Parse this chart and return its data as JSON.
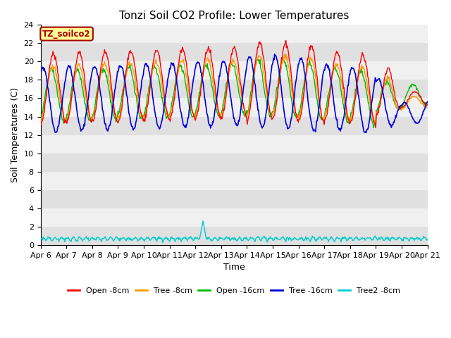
{
  "title": "Tonzi Soil CO2 Profile: Lower Temperatures",
  "xlabel": "Time",
  "ylabel": "Soil Temperatures (C)",
  "ylim": [
    0,
    24
  ],
  "yticks": [
    0,
    2,
    4,
    6,
    8,
    10,
    12,
    14,
    16,
    18,
    20,
    22,
    24
  ],
  "annotation_text": "TZ_soilco2",
  "annotation_color": "#aa0000",
  "annotation_bg": "#ffff99",
  "band_colors": [
    "#e0e0e0",
    "#f0f0f0"
  ],
  "series_colors": {
    "open_8cm": "#ff0000",
    "tree_8cm": "#ff9900",
    "open_16cm": "#00bb00",
    "tree_16cm": "#0000dd",
    "tree2_8cm": "#00cccc"
  },
  "legend_labels": [
    "Open -8cm",
    "Tree -8cm",
    "Open -16cm",
    "Tree -16cm",
    "Tree2 -8cm"
  ],
  "n_days": 15,
  "start_day": 6
}
